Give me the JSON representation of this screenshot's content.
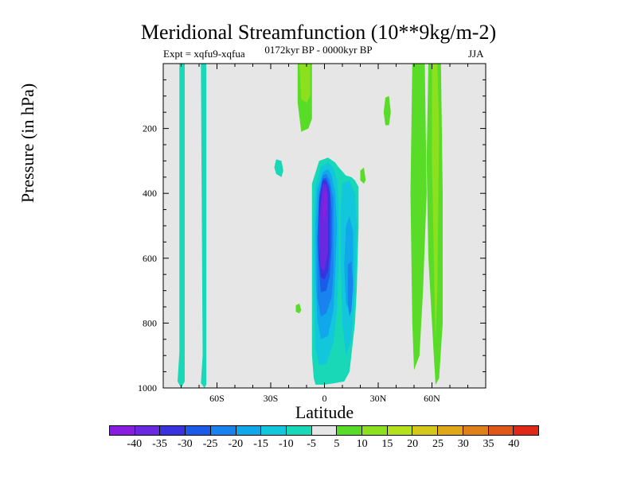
{
  "chart_data": {
    "type": "heatmap",
    "title": "Meridional Streamfunction (10**9kg/m-2)",
    "subtitle_left": "Expt = xqfu9-xqfua",
    "subtitle_center": "0172kyr BP - 0000kyr BP",
    "subtitle_right": "JJA",
    "xlabel": "Latitude",
    "ylabel": "Pressure (in hPa)",
    "xlim": [
      -90,
      90
    ],
    "ylim": [
      1000,
      0
    ],
    "x_ticks": [
      {
        "value": -60,
        "label": "60S"
      },
      {
        "value": -30,
        "label": "30S"
      },
      {
        "value": 0,
        "label": "0"
      },
      {
        "value": 30,
        "label": "30N"
      },
      {
        "value": 60,
        "label": "60N"
      }
    ],
    "y_ticks": [
      {
        "value": 200,
        "label": "200"
      },
      {
        "value": 400,
        "label": "400"
      },
      {
        "value": 600,
        "label": "600"
      },
      {
        "value": 800,
        "label": "800"
      },
      {
        "value": 1000,
        "label": "1000"
      }
    ],
    "background_color": "#e6e6e6",
    "colorbar": {
      "labels": [
        "-40",
        "-35",
        "-30",
        "-25",
        "-20",
        "-15",
        "-10",
        "-5",
        "5",
        "10",
        "15",
        "20",
        "25",
        "30",
        "35",
        "40"
      ],
      "colors": [
        "#8a1ee0",
        "#6a28e0",
        "#3a32e0",
        "#1c5ae8",
        "#1a82ee",
        "#10a8ea",
        "#12c6dc",
        "#18d8b8",
        "#e6e6e6",
        "#58dc28",
        "#8ce01e",
        "#b4e01c",
        "#d4c81a",
        "#e0a818",
        "#e08018",
        "#e05818",
        "#e02818"
      ]
    },
    "regions": [
      {
        "name": "band-70S",
        "level": -5,
        "points": [
          [
            -81,
            0
          ],
          [
            -78,
            0
          ],
          [
            -78,
            980
          ],
          [
            -80,
            1000
          ],
          [
            -82,
            980
          ],
          [
            -81,
            890
          ]
        ]
      },
      {
        "name": "band-63S",
        "level": -5,
        "points": [
          [
            -69,
            0
          ],
          [
            -66,
            0
          ],
          [
            -66,
            990
          ],
          [
            -67,
            1000
          ],
          [
            -69,
            985
          ],
          [
            -68,
            900
          ]
        ]
      },
      {
        "name": "small-20S",
        "level": -5,
        "points": [
          [
            -27,
            295
          ],
          [
            -24,
            300
          ],
          [
            -23,
            330
          ],
          [
            -24,
            350
          ],
          [
            -27,
            340
          ],
          [
            -28,
            320
          ]
        ]
      },
      {
        "name": "cell-outer",
        "level": -5,
        "points": [
          [
            -7,
            370
          ],
          [
            -3,
            300
          ],
          [
            2,
            290
          ],
          [
            6,
            305
          ],
          [
            8,
            320
          ],
          [
            12,
            345
          ],
          [
            15,
            350
          ],
          [
            17,
            360
          ],
          [
            19,
            380
          ],
          [
            19,
            500
          ],
          [
            18,
            700
          ],
          [
            17,
            800
          ],
          [
            14,
            950
          ],
          [
            11,
            980
          ],
          [
            6,
            985
          ],
          [
            0,
            990
          ],
          [
            -5,
            990
          ],
          [
            -6,
            970
          ],
          [
            -7,
            900
          ],
          [
            -7,
            700
          ],
          [
            -7,
            500
          ]
        ]
      },
      {
        "name": "cell-10",
        "level": -10,
        "points": [
          [
            -5,
            380
          ],
          [
            -2,
            318
          ],
          [
            2,
            305
          ],
          [
            5,
            322
          ],
          [
            7,
            360
          ],
          [
            8,
            450
          ],
          [
            8,
            600
          ],
          [
            7,
            750
          ],
          [
            5,
            860
          ],
          [
            1,
            925
          ],
          [
            -3,
            930
          ],
          [
            -5,
            880
          ],
          [
            -6,
            700
          ],
          [
            -6,
            500
          ]
        ]
      },
      {
        "name": "cell-right-10",
        "level": -10,
        "points": [
          [
            10,
            370
          ],
          [
            14,
            360
          ],
          [
            17,
            400
          ],
          [
            18,
            500
          ],
          [
            17,
            700
          ],
          [
            15,
            850
          ],
          [
            12,
            900
          ],
          [
            10,
            800
          ],
          [
            9,
            600
          ],
          [
            9,
            450
          ]
        ]
      },
      {
        "name": "cell-15",
        "level": -15,
        "points": [
          [
            -4,
            390
          ],
          [
            -1,
            335
          ],
          [
            2,
            325
          ],
          [
            4,
            345
          ],
          [
            6,
            400
          ],
          [
            7,
            500
          ],
          [
            6,
            650
          ],
          [
            5,
            760
          ],
          [
            2,
            840
          ],
          [
            -2,
            850
          ],
          [
            -4,
            790
          ],
          [
            -5,
            650
          ],
          [
            -5,
            500
          ]
        ]
      },
      {
        "name": "cell-20",
        "level": -20,
        "points": [
          [
            -3,
            400
          ],
          [
            -1,
            345
          ],
          [
            1,
            340
          ],
          [
            3,
            360
          ],
          [
            5,
            420
          ],
          [
            5,
            520
          ],
          [
            5,
            640
          ],
          [
            4,
            720
          ],
          [
            1,
            770
          ],
          [
            -2,
            780
          ],
          [
            -4,
            720
          ],
          [
            -4,
            560
          ]
        ]
      },
      {
        "name": "cell-right-15",
        "level": -15,
        "points": [
          [
            12,
            500
          ],
          [
            14,
            470
          ],
          [
            16,
            520
          ],
          [
            16,
            700
          ],
          [
            14,
            760
          ],
          [
            12,
            740
          ],
          [
            11,
            620
          ]
        ]
      },
      {
        "name": "cell-25",
        "level": -25,
        "points": [
          [
            -3,
            410
          ],
          [
            -1,
            355
          ],
          [
            1,
            352
          ],
          [
            3,
            380
          ],
          [
            4,
            450
          ],
          [
            4,
            560
          ],
          [
            3,
            650
          ],
          [
            1,
            700
          ],
          [
            -2,
            705
          ],
          [
            -3,
            640
          ],
          [
            -4,
            540
          ]
        ]
      },
      {
        "name": "cell-right-20",
        "level": -20,
        "points": [
          [
            13,
            620
          ],
          [
            15,
            610
          ],
          [
            16,
            680
          ],
          [
            15,
            760
          ],
          [
            14,
            780
          ],
          [
            13,
            740
          ]
        ]
      },
      {
        "name": "cell-30",
        "level": -30,
        "points": [
          [
            -3,
            420
          ],
          [
            -1,
            360
          ],
          [
            1,
            360
          ],
          [
            3,
            400
          ],
          [
            3,
            480
          ],
          [
            3,
            580
          ],
          [
            2,
            640
          ],
          [
            0,
            665
          ],
          [
            -2,
            660
          ],
          [
            -3,
            600
          ],
          [
            -3,
            500
          ]
        ]
      },
      {
        "name": "cell-35",
        "level": -35,
        "points": [
          [
            -2,
            430
          ],
          [
            -1,
            370
          ],
          [
            1,
            372
          ],
          [
            2,
            410
          ],
          [
            2,
            500
          ],
          [
            2,
            580
          ],
          [
            0,
            640
          ],
          [
            -2,
            630
          ],
          [
            -3,
            560
          ],
          [
            -3,
            480
          ]
        ]
      },
      {
        "name": "cell-40",
        "level": -40,
        "points": [
          [
            -1,
            440
          ],
          [
            0,
            390
          ],
          [
            1,
            400
          ],
          [
            1,
            450
          ],
          [
            0,
            490
          ],
          [
            -1,
            480
          ]
        ]
      },
      {
        "name": "top-tongue",
        "level": 5,
        "points": [
          [
            -15,
            0
          ],
          [
            -7,
            0
          ],
          [
            -7,
            170
          ],
          [
            -9,
            200
          ],
          [
            -13,
            210
          ],
          [
            -15,
            120
          ]
        ]
      },
      {
        "name": "top-tongue-10",
        "level": 10,
        "points": [
          [
            -14,
            0
          ],
          [
            -8,
            0
          ],
          [
            -8,
            100
          ],
          [
            -10,
            120
          ],
          [
            -13,
            110
          ]
        ]
      },
      {
        "name": "left-blob",
        "level": 5,
        "points": [
          [
            -16,
            745
          ],
          [
            -14,
            740
          ],
          [
            -13,
            760
          ],
          [
            -14,
            770
          ],
          [
            -16,
            765
          ]
        ]
      },
      {
        "name": "nh-small",
        "level": 5,
        "points": [
          [
            34,
            105
          ],
          [
            36,
            100
          ],
          [
            37,
            150
          ],
          [
            36,
            190
          ],
          [
            34,
            190
          ],
          [
            33,
            150
          ]
        ]
      },
      {
        "name": "nh-right",
        "level": 5,
        "points": [
          [
            20,
            330
          ],
          [
            22,
            320
          ],
          [
            23,
            360
          ],
          [
            22,
            370
          ],
          [
            20,
            360
          ]
        ]
      },
      {
        "name": "nh-band-50",
        "level": 5,
        "points": [
          [
            49,
            0
          ],
          [
            56,
            0
          ],
          [
            57,
            400
          ],
          [
            55,
            700
          ],
          [
            53,
            900
          ],
          [
            50,
            945
          ],
          [
            49,
            800
          ],
          [
            48,
            400
          ]
        ]
      },
      {
        "name": "nh-band-60",
        "level": 5,
        "points": [
          [
            58,
            0
          ],
          [
            65,
            0
          ],
          [
            66,
            400
          ],
          [
            66,
            800
          ],
          [
            64,
            970
          ],
          [
            62,
            990
          ],
          [
            61,
            900
          ],
          [
            58,
            600
          ],
          [
            57,
            300
          ]
        ]
      },
      {
        "name": "nh-band-10",
        "level": 10,
        "points": [
          [
            60,
            0
          ],
          [
            63,
            0
          ],
          [
            64,
            200
          ],
          [
            63,
            700
          ],
          [
            62,
            860
          ],
          [
            61,
            600
          ],
          [
            60,
            300
          ]
        ]
      }
    ]
  }
}
